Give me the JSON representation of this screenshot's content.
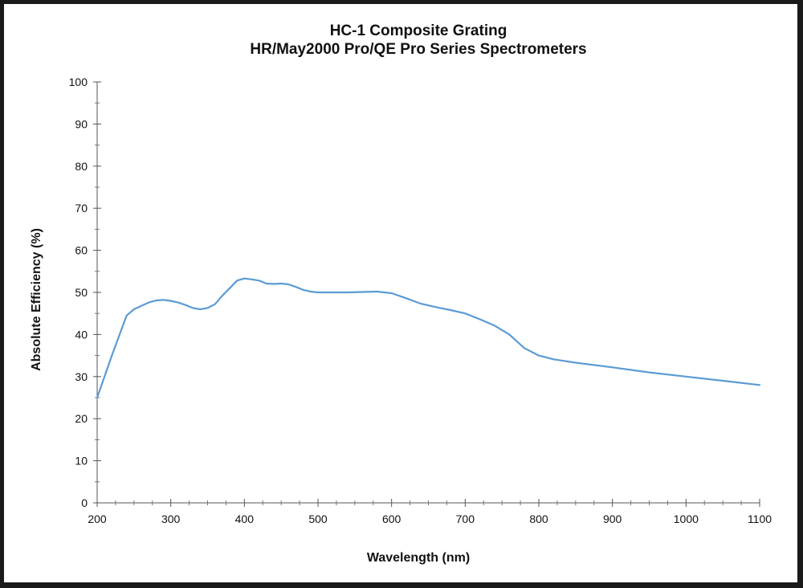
{
  "chart_data": {
    "type": "line",
    "title_lines": [
      "HC-1 Composite Grating",
      "HR/May2000 Pro/QE Pro Series Spectrometers"
    ],
    "xlabel": "Wavelength (nm)",
    "ylabel": "Absolute Efficiency (%)",
    "xlim": [
      200,
      1100
    ],
    "ylim": [
      0,
      100
    ],
    "x_ticks": [
      200,
      300,
      400,
      500,
      600,
      700,
      800,
      900,
      1000,
      1100
    ],
    "y_ticks": [
      0,
      10,
      20,
      30,
      40,
      50,
      60,
      70,
      80,
      90,
      100
    ],
    "x_tick_labels": [
      "200",
      "300",
      "400",
      "500",
      "600",
      "700",
      "800",
      "900",
      "1000",
      "1100"
    ],
    "y_tick_labels": [
      "0",
      "10",
      "20",
      "30",
      "40",
      "50",
      "60",
      "70",
      "80",
      "90",
      "100"
    ],
    "grid": false,
    "line_color": "#5b9bd5",
    "series": [
      {
        "x": [
          200,
          220,
          240,
          250,
          260,
          270,
          280,
          290,
          300,
          310,
          320,
          330,
          340,
          350,
          360,
          370,
          380,
          390,
          400,
          410,
          420,
          430,
          440,
          450,
          460,
          470,
          480,
          490,
          500,
          520,
          540,
          560,
          580,
          600,
          620,
          640,
          660,
          680,
          700,
          720,
          740,
          760,
          780,
          800,
          820,
          850,
          900,
          950,
          1000,
          1050,
          1100
        ],
        "y": [
          25,
          35,
          44.5,
          46,
          46.8,
          47.6,
          48.1,
          48.2,
          48,
          47.6,
          47,
          46.3,
          46,
          46.3,
          47.2,
          49.2,
          51,
          52.8,
          53.3,
          53.1,
          52.8,
          52.1,
          52,
          52.1,
          51.9,
          51.3,
          50.6,
          50.2,
          50,
          50,
          50,
          50.1,
          50.2,
          49.8,
          48.6,
          47.3,
          46.5,
          45.8,
          45,
          43.6,
          42.1,
          40,
          36.8,
          35,
          34.1,
          33.3,
          32.2,
          31,
          30,
          29,
          28
        ]
      }
    ]
  }
}
